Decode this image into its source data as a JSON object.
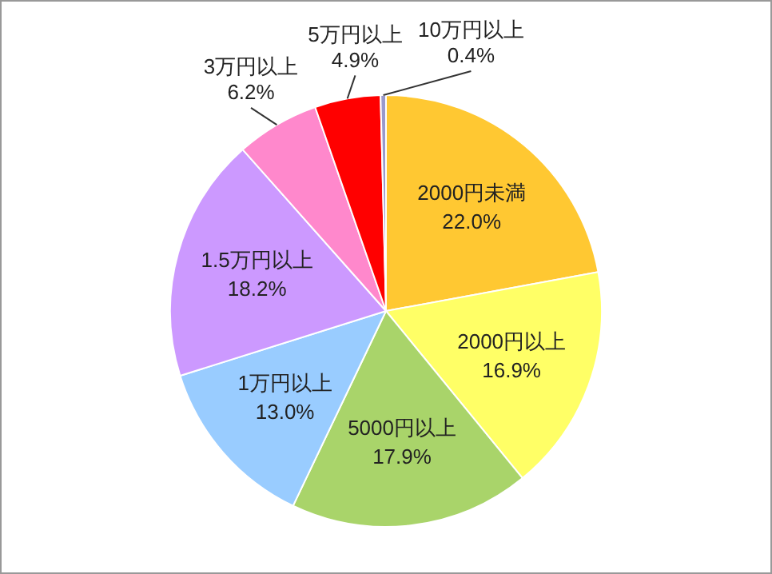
{
  "chart_data": {
    "type": "pie",
    "categories": [
      "2000円未満",
      "2000円以上",
      "5000円以上",
      "1万円以上",
      "1.5万円以上",
      "3万円以上",
      "5万円以上",
      "10万円以上"
    ],
    "values": [
      22.0,
      16.9,
      17.9,
      13.0,
      18.2,
      6.2,
      4.9,
      0.4
    ],
    "value_labels": [
      "22.0%",
      "16.9%",
      "17.9%",
      "13.0%",
      "18.2%",
      "6.2%",
      "4.9%",
      "0.4%"
    ],
    "colors": [
      "#ffc832",
      "#ffff66",
      "#a9d46a",
      "#99ccff",
      "#cc99ff",
      "#ff88cc",
      "#ff0000",
      "#9999cc"
    ],
    "legend": false
  }
}
